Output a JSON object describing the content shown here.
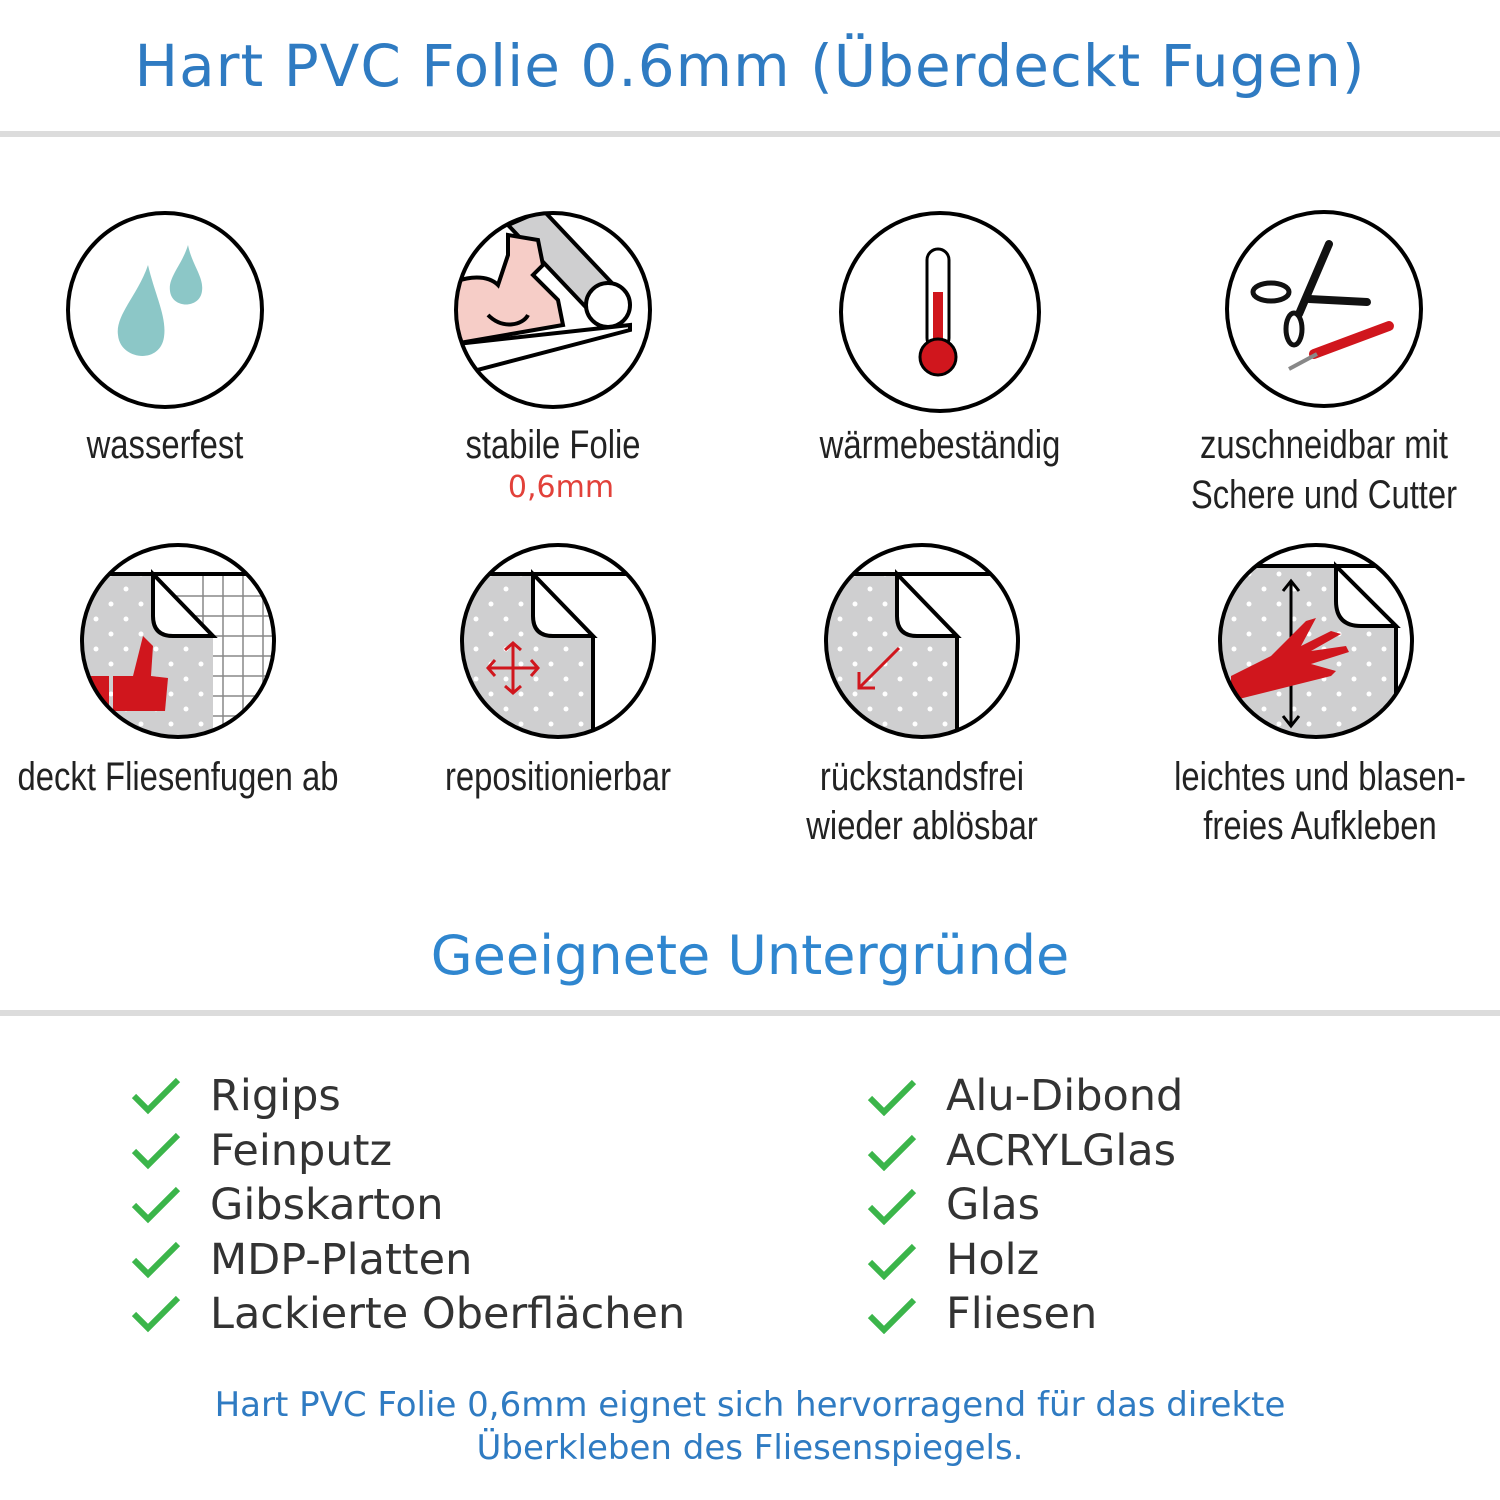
{
  "header": {
    "title": "Hart PVC Folie 0.6mm (Überdeckt Fugen)"
  },
  "features": [
    {
      "icon": "water-drops-icon",
      "lines": [
        "wasserfest"
      ]
    },
    {
      "icon": "strong-arm-roll-icon",
      "lines": [
        "stabile Folie"
      ],
      "sub": "0,6mm"
    },
    {
      "icon": "thermometer-icon",
      "lines": [
        "wärmebeständig"
      ]
    },
    {
      "icon": "scissors-cutter-icon",
      "lines": [
        "zuschneidbar mit",
        "Schere und Cutter"
      ]
    },
    {
      "icon": "thumb-up-tiles-icon",
      "lines": [
        "deckt Fliesenfugen ab"
      ]
    },
    {
      "icon": "move-arrows-icon",
      "lines": [
        "repositionierbar"
      ]
    },
    {
      "icon": "peel-arrow-icon",
      "lines": [
        "rückstandsfrei",
        "wieder ablösbar"
      ]
    },
    {
      "icon": "hand-smooth-icon",
      "lines": [
        "leichtes und blasen-",
        "freies Aufkleben"
      ]
    }
  ],
  "surfaces": {
    "title": "Geeignete Untergründe",
    "left": [
      "Rigips",
      "Feinputz",
      "Gibskarton",
      "MDP-Platten",
      "Lackierte Oberflächen"
    ],
    "right": [
      "Alu-Dibond",
      "ACRYLGlas",
      "Glas",
      "Holz",
      "Fliesen"
    ]
  },
  "footer": {
    "lines": [
      "Hart PVC Folie 0,6mm eignet sich hervorragend für das direkte",
      "Überkleben des Fliesenspiegels."
    ]
  },
  "colors": {
    "title": "#2f7bc2",
    "check": "#3bb54a",
    "accent_red": "#d0161d",
    "drop": "#8cc7c7"
  }
}
